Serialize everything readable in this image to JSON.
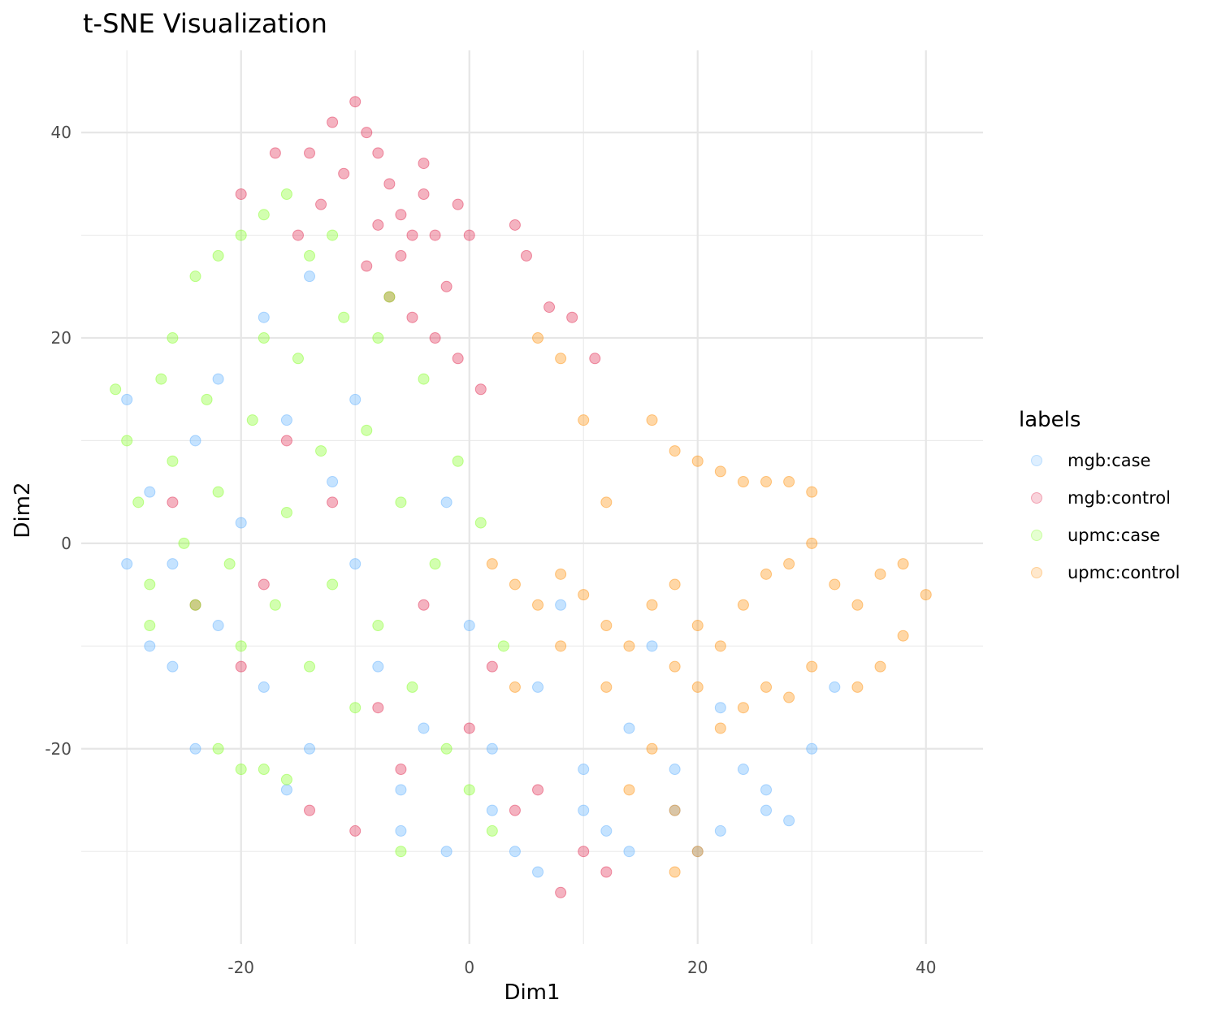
{
  "chart_data": {
    "type": "scatter",
    "title": "t-SNE Visualization",
    "xlabel": "Dim1",
    "ylabel": "Dim2",
    "xlim": [
      -34,
      45
    ],
    "ylim": [
      -39,
      48
    ],
    "x_ticks": [
      -20,
      0,
      20,
      40
    ],
    "x_tick_labels": [
      "-20",
      "0",
      "20",
      "40"
    ],
    "y_ticks": [
      -20,
      0,
      20,
      40
    ],
    "y_tick_labels": [
      "-20",
      "0",
      "20",
      "40"
    ],
    "x_minor_ticks": [
      -30,
      -10,
      10,
      30
    ],
    "y_minor_ticks": [
      -30,
      -10,
      10,
      30
    ],
    "grid": true,
    "point_alpha": 0.2,
    "legend": {
      "title": "labels",
      "position": "right"
    },
    "series": [
      {
        "name": "mgb:case",
        "color": "#5aaeff",
        "points": [
          [
            -30,
            14
          ],
          [
            -28,
            5
          ],
          [
            -26,
            -2
          ],
          [
            -24,
            10
          ],
          [
            -22,
            -8
          ],
          [
            -20,
            2
          ],
          [
            -18,
            -14
          ],
          [
            -16,
            12
          ],
          [
            -14,
            -20
          ],
          [
            -12,
            6
          ],
          [
            -10,
            -2
          ],
          [
            -8,
            -12
          ],
          [
            -6,
            -24
          ],
          [
            -4,
            -18
          ],
          [
            -2,
            4
          ],
          [
            0,
            -8
          ],
          [
            2,
            -20
          ],
          [
            4,
            -30
          ],
          [
            6,
            -14
          ],
          [
            8,
            -6
          ],
          [
            10,
            -22
          ],
          [
            12,
            -28
          ],
          [
            14,
            -18
          ],
          [
            16,
            -10
          ],
          [
            18,
            -26
          ],
          [
            20,
            -30
          ],
          [
            22,
            -16
          ],
          [
            24,
            -22
          ],
          [
            26,
            -24
          ],
          [
            28,
            -27
          ],
          [
            30,
            -20
          ],
          [
            32,
            -14
          ],
          [
            -30,
            -2
          ],
          [
            -26,
            -12
          ],
          [
            -22,
            16
          ],
          [
            -18,
            22
          ],
          [
            -14,
            26
          ],
          [
            -10,
            14
          ],
          [
            -6,
            -28
          ],
          [
            -2,
            -30
          ],
          [
            2,
            -26
          ],
          [
            6,
            -32
          ],
          [
            10,
            -26
          ],
          [
            14,
            -30
          ],
          [
            18,
            -22
          ],
          [
            22,
            -28
          ],
          [
            26,
            -26
          ],
          [
            -24,
            -20
          ],
          [
            -28,
            -10
          ],
          [
            -16,
            -24
          ]
        ]
      },
      {
        "name": "mgb:control",
        "color": "#e0214a",
        "points": [
          [
            -10,
            43
          ],
          [
            -9,
            40
          ],
          [
            -8,
            38
          ],
          [
            -7,
            35
          ],
          [
            -6,
            32
          ],
          [
            -5,
            30
          ],
          [
            -12,
            41
          ],
          [
            -14,
            38
          ],
          [
            -11,
            36
          ],
          [
            -8,
            31
          ],
          [
            -6,
            28
          ],
          [
            -4,
            34
          ],
          [
            -3,
            30
          ],
          [
            -2,
            25
          ],
          [
            -9,
            27
          ],
          [
            -7,
            24
          ],
          [
            -5,
            22
          ],
          [
            -13,
            33
          ],
          [
            -15,
            30
          ],
          [
            -17,
            38
          ],
          [
            -20,
            34
          ],
          [
            -4,
            37
          ],
          [
            -1,
            33
          ],
          [
            0,
            30
          ],
          [
            4,
            31
          ],
          [
            5,
            28
          ],
          [
            7,
            23
          ],
          [
            9,
            22
          ],
          [
            11,
            18
          ],
          [
            -3,
            20
          ],
          [
            -1,
            18
          ],
          [
            1,
            15
          ],
          [
            -16,
            10
          ],
          [
            -12,
            4
          ],
          [
            -18,
            -4
          ],
          [
            -8,
            -16
          ],
          [
            -4,
            -6
          ],
          [
            2,
            -12
          ],
          [
            6,
            -24
          ],
          [
            10,
            -30
          ],
          [
            -20,
            -12
          ],
          [
            -24,
            -6
          ],
          [
            -14,
            -26
          ],
          [
            -10,
            -28
          ],
          [
            -6,
            -22
          ],
          [
            0,
            -18
          ],
          [
            4,
            -26
          ],
          [
            8,
            -34
          ],
          [
            12,
            -32
          ],
          [
            -26,
            4
          ]
        ]
      },
      {
        "name": "upmc:case",
        "color": "#7fff1a",
        "points": [
          [
            -31,
            15
          ],
          [
            -30,
            10
          ],
          [
            -29,
            4
          ],
          [
            -28,
            -4
          ],
          [
            -27,
            16
          ],
          [
            -26,
            8
          ],
          [
            -25,
            0
          ],
          [
            -24,
            -6
          ],
          [
            -23,
            14
          ],
          [
            -22,
            5
          ],
          [
            -21,
            -2
          ],
          [
            -20,
            -10
          ],
          [
            -19,
            12
          ],
          [
            -18,
            20
          ],
          [
            -17,
            -6
          ],
          [
            -16,
            3
          ],
          [
            -15,
            18
          ],
          [
            -14,
            -12
          ],
          [
            -13,
            9
          ],
          [
            -12,
            -4
          ],
          [
            -11,
            22
          ],
          [
            -10,
            -16
          ],
          [
            -9,
            11
          ],
          [
            -8,
            -8
          ],
          [
            -7,
            24
          ],
          [
            -6,
            4
          ],
          [
            -5,
            -14
          ],
          [
            -4,
            16
          ],
          [
            -3,
            -2
          ],
          [
            -2,
            -20
          ],
          [
            -1,
            8
          ],
          [
            0,
            -24
          ],
          [
            1,
            2
          ],
          [
            2,
            -28
          ],
          [
            3,
            -10
          ],
          [
            -22,
            -20
          ],
          [
            -20,
            -22
          ],
          [
            -18,
            -22
          ],
          [
            -16,
            -23
          ],
          [
            -24,
            26
          ],
          [
            -22,
            28
          ],
          [
            -20,
            30
          ],
          [
            -18,
            32
          ],
          [
            -16,
            34
          ],
          [
            -14,
            28
          ],
          [
            -12,
            30
          ],
          [
            -8,
            20
          ],
          [
            -26,
            20
          ],
          [
            -28,
            -8
          ],
          [
            -6,
            -30
          ]
        ]
      },
      {
        "name": "upmc:control",
        "color": "#ff8c00",
        "points": [
          [
            2,
            -2
          ],
          [
            4,
            -4
          ],
          [
            6,
            -6
          ],
          [
            8,
            -3
          ],
          [
            10,
            -5
          ],
          [
            12,
            -8
          ],
          [
            14,
            -10
          ],
          [
            16,
            -6
          ],
          [
            18,
            -4
          ],
          [
            20,
            -8
          ],
          [
            22,
            -10
          ],
          [
            24,
            -6
          ],
          [
            26,
            -3
          ],
          [
            28,
            -2
          ],
          [
            30,
            0
          ],
          [
            32,
            -4
          ],
          [
            34,
            -6
          ],
          [
            36,
            -3
          ],
          [
            38,
            -2
          ],
          [
            40,
            -5
          ],
          [
            38,
            -9
          ],
          [
            36,
            -12
          ],
          [
            34,
            -14
          ],
          [
            30,
            -12
          ],
          [
            28,
            -15
          ],
          [
            26,
            -14
          ],
          [
            24,
            -16
          ],
          [
            22,
            -18
          ],
          [
            20,
            -14
          ],
          [
            18,
            -12
          ],
          [
            16,
            -20
          ],
          [
            14,
            -24
          ],
          [
            18,
            -26
          ],
          [
            20,
            -30
          ],
          [
            18,
            -32
          ],
          [
            16,
            12
          ],
          [
            18,
            9
          ],
          [
            20,
            8
          ],
          [
            22,
            7
          ],
          [
            24,
            6
          ],
          [
            26,
            6
          ],
          [
            28,
            6
          ],
          [
            30,
            5
          ],
          [
            12,
            4
          ],
          [
            10,
            12
          ],
          [
            8,
            18
          ],
          [
            6,
            20
          ],
          [
            4,
            -14
          ],
          [
            8,
            -10
          ],
          [
            12,
            -14
          ]
        ]
      }
    ]
  }
}
